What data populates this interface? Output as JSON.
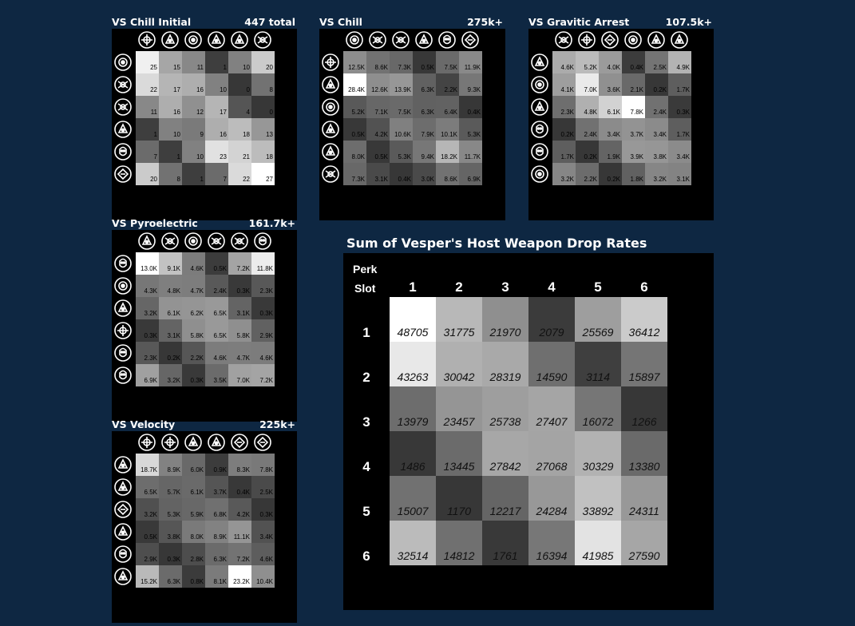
{
  "chart_data": [
    {
      "type": "heatmap",
      "title": "VS Chill Initial",
      "total": "447 total",
      "row_icons": [
        "target-ring",
        "cog-spark",
        "wing-shield",
        "ring-target",
        "spark-blade",
        "skull-badge"
      ],
      "col_icons": [
        "orbit-blade",
        "blade-sight",
        "gate-bracket",
        "atom-star",
        "skull-ring",
        "crosshair-sun"
      ],
      "values": [
        [
          "25",
          "15",
          "11",
          "1",
          "10",
          "20"
        ],
        [
          "22",
          "17",
          "16",
          "10",
          "0",
          "8"
        ],
        [
          "11",
          "16",
          "12",
          "17",
          "4",
          "0"
        ],
        [
          "1",
          "10",
          "9",
          "16",
          "18",
          "13"
        ],
        [
          "7",
          "1",
          "10",
          "23",
          "21",
          "18"
        ],
        [
          "20",
          "8",
          "1",
          "7",
          "22",
          "27"
        ]
      ],
      "shade": [
        [
          25,
          15,
          11,
          1,
          10,
          20
        ],
        [
          22,
          17,
          16,
          10,
          0,
          8
        ],
        [
          11,
          16,
          12,
          17,
          4,
          0
        ],
        [
          1,
          10,
          9,
          16,
          18,
          13
        ],
        [
          7,
          1,
          10,
          23,
          21,
          18
        ],
        [
          20,
          8,
          1,
          7,
          22,
          27
        ]
      ]
    },
    {
      "type": "heatmap",
      "title": "VS Chill",
      "total": "275k+",
      "row_icons": [
        "orbit-blade",
        "blade-sight",
        "gate-bracket",
        "atom-star",
        "skull-ring",
        "crosshair-sun"
      ],
      "col_icons": [
        "target-ring",
        "cog-spark",
        "wing-shield",
        "ring-target",
        "spark-blade",
        "skull-badge"
      ],
      "values": [
        [
          "12.5K",
          "8.6K",
          "7.3K",
          "0.5K",
          "7.5K",
          "11.9K"
        ],
        [
          "28.4K",
          "12.6K",
          "13.9K",
          "6.3K",
          "2.2K",
          "9.3K"
        ],
        [
          "5.2K",
          "7.1K",
          "7.5K",
          "6.3K",
          "6.4K",
          "0.4K"
        ],
        [
          "0.5K",
          "4.2K",
          "10.6K",
          "7.9K",
          "10.1K",
          "5.3K"
        ],
        [
          "8.0K",
          "0.5K",
          "5.3K",
          "9.4K",
          "18.2K",
          "11.7K"
        ],
        [
          "7.3K",
          "3.1K",
          "0.4K",
          "3.0K",
          "8.6K",
          "6.9K"
        ]
      ],
      "shade": [
        [
          12.5,
          8.6,
          7.3,
          0.5,
          7.5,
          11.9
        ],
        [
          28.4,
          12.6,
          13.9,
          6.3,
          2.2,
          9.3
        ],
        [
          5.2,
          7.1,
          7.5,
          6.3,
          6.4,
          0.4
        ],
        [
          0.5,
          4.2,
          10.6,
          7.9,
          10.1,
          5.3
        ],
        [
          8.0,
          0.5,
          5.3,
          9.4,
          18.2,
          11.7
        ],
        [
          7.3,
          3.1,
          0.4,
          3.0,
          8.6,
          6.9
        ]
      ]
    },
    {
      "type": "heatmap",
      "title": "VS Gravitic Arrest",
      "total": "107.5k+",
      "row_icons": [
        "dot-ring",
        "clock-arrow",
        "atom-star",
        "lamp-spark",
        "cube-split",
        "crosshair-dot"
      ],
      "col_icons": [
        "claw-lines",
        "swirl-badge",
        "skull-badge",
        "hex-sigil",
        "plus-gear",
        "dot-ring"
      ],
      "values": [
        [
          "4.6K",
          "5.2K",
          "4.0K",
          "0.4K",
          "2.5K",
          "4.9K"
        ],
        [
          "4.1K",
          "7.0K",
          "3.6K",
          "2.1K",
          "0.2K",
          "1.7K"
        ],
        [
          "2.3K",
          "4.8K",
          "6.1K",
          "7.8K",
          "2.4K",
          "0.3K"
        ],
        [
          "0.2K",
          "2.4K",
          "3.4K",
          "3.7K",
          "3.4K",
          "1.7K"
        ],
        [
          "1.7K",
          "0.2K",
          "1.9K",
          "3.9K",
          "3.8K",
          "3.4K"
        ],
        [
          "3.2K",
          "2.2K",
          "0.2K",
          "1.8K",
          "3.2K",
          "3.1K"
        ]
      ],
      "shade": [
        [
          4.6,
          5.2,
          4.0,
          0.4,
          2.5,
          4.9
        ],
        [
          4.1,
          7.0,
          3.6,
          2.1,
          0.2,
          1.7
        ],
        [
          2.3,
          4.8,
          6.1,
          7.8,
          2.4,
          0.3
        ],
        [
          0.2,
          2.4,
          3.4,
          3.7,
          3.4,
          1.7
        ],
        [
          1.7,
          0.2,
          1.9,
          3.9,
          3.8,
          3.4
        ],
        [
          3.2,
          2.2,
          0.2,
          1.8,
          3.2,
          3.1
        ]
      ]
    },
    {
      "type": "heatmap",
      "title": "VS Pyroelectric",
      "total": "161.7k+",
      "row_icons": [
        "diamond-bolt",
        "clock-arrow",
        "arch-lines",
        "orbit-blade",
        "block-stack",
        "diamond-flame"
      ],
      "col_icons": [
        "ring-target",
        "claw-lines",
        "crosshair-dot",
        "wing-shield",
        "cog-spark",
        "triangle-eye"
      ],
      "values": [
        [
          "13.0K",
          "9.1K",
          "4.6K",
          "0.5K",
          "7.2K",
          "11.8K"
        ],
        [
          "4.3K",
          "4.8K",
          "4.7K",
          "2.4K",
          "0.3K",
          "2.3K"
        ],
        [
          "3.2K",
          "6.1K",
          "6.2K",
          "6.5K",
          "3.1K",
          "0.3K"
        ],
        [
          "0.3K",
          "3.1K",
          "5.8K",
          "6.5K",
          "5.8K",
          "2.9K"
        ],
        [
          "2.3K",
          "0.2K",
          "2.2K",
          "4.6K",
          "4.7K",
          "4.6K"
        ],
        [
          "6.9K",
          "3.2K",
          "0.3K",
          "3.5K",
          "7.0K",
          "7.2K"
        ]
      ],
      "shade": [
        [
          13.0,
          9.1,
          4.6,
          0.5,
          7.2,
          11.8
        ],
        [
          4.3,
          4.8,
          4.7,
          2.4,
          0.3,
          2.3
        ],
        [
          3.2,
          6.1,
          6.2,
          6.5,
          3.1,
          0.3
        ],
        [
          0.3,
          3.1,
          5.8,
          6.5,
          5.8,
          2.9
        ],
        [
          2.3,
          0.2,
          2.2,
          4.6,
          4.7,
          4.6
        ],
        [
          6.9,
          3.2,
          0.3,
          3.5,
          7.0,
          7.2
        ]
      ]
    },
    {
      "type": "heatmap",
      "title": "VS Velocity",
      "total": "225k+",
      "row_icons": [
        "dot-ring",
        "spark-circle",
        "crescent-hook",
        "blade-sight",
        "starburst",
        "ring-target"
      ],
      "col_icons": [
        "swirl-badge",
        "star-burst",
        "plus-gear",
        "cross-blades",
        "skull-badge",
        "jet-arrow"
      ],
      "values": [
        [
          "18.7K",
          "8.9K",
          "6.0K",
          "0.9K",
          "8.3K",
          "7.8K"
        ],
        [
          "6.5K",
          "5.7K",
          "6.1K",
          "3.7K",
          "0.4K",
          "2.5K"
        ],
        [
          "3.2K",
          "5.3K",
          "5.9K",
          "6.8K",
          "4.2K",
          "0.3K"
        ],
        [
          "0.5K",
          "3.8K",
          "8.0K",
          "8.9K",
          "11.1K",
          "3.4K"
        ],
        [
          "2.9K",
          "0.3K",
          "2.8K",
          "6.3K",
          "7.2K",
          "4.6K"
        ],
        [
          "15.2K",
          "6.3K",
          "0.8K",
          "8.1K",
          "23.2K",
          "10.4K"
        ]
      ],
      "shade": [
        [
          18.7,
          8.9,
          6.0,
          0.9,
          8.3,
          7.8
        ],
        [
          6.5,
          5.7,
          6.1,
          3.7,
          0.4,
          2.5
        ],
        [
          3.2,
          5.3,
          5.9,
          6.8,
          4.2,
          0.3
        ],
        [
          0.5,
          3.8,
          8.0,
          8.9,
          11.1,
          3.4
        ],
        [
          2.9,
          0.3,
          2.8,
          6.3,
          7.2,
          4.6
        ],
        [
          15.2,
          6.3,
          0.8,
          8.1,
          23.2,
          10.4
        ]
      ]
    },
    {
      "type": "heatmap",
      "title": "Sum of Vesper's Host Weapon Drop Rates",
      "corner_label_line1": "Perk",
      "corner_label_line2": "Slot",
      "columns": [
        "1",
        "2",
        "3",
        "4",
        "5",
        "6"
      ],
      "rows": [
        "1",
        "2",
        "3",
        "4",
        "5",
        "6"
      ],
      "values": [
        [
          48705,
          31775,
          21970,
          2079,
          25569,
          36412
        ],
        [
          43263,
          30042,
          28319,
          14590,
          3114,
          15897
        ],
        [
          13979,
          23457,
          25738,
          27407,
          16072,
          1266
        ],
        [
          1486,
          13445,
          27842,
          27068,
          30329,
          13380
        ],
        [
          15007,
          1170,
          12217,
          24284,
          33892,
          24311
        ],
        [
          32514,
          14812,
          1761,
          16394,
          41985,
          27590
        ]
      ]
    }
  ]
}
